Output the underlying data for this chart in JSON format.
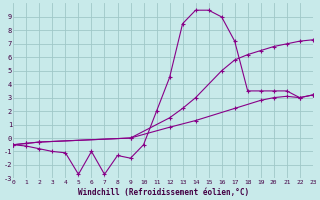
{
  "background_color": "#c8eaea",
  "grid_color": "#a0c8c8",
  "line_color": "#880088",
  "xlabel": "Windchill (Refroidissement éolien,°C)",
  "xlim": [
    0,
    23
  ],
  "ylim": [
    -3,
    10
  ],
  "xticks": [
    0,
    1,
    2,
    3,
    4,
    5,
    6,
    7,
    8,
    9,
    10,
    11,
    12,
    13,
    14,
    15,
    16,
    17,
    18,
    19,
    20,
    21,
    22,
    23
  ],
  "yticks": [
    -3,
    -2,
    -1,
    0,
    1,
    2,
    3,
    4,
    5,
    6,
    7,
    8,
    9
  ],
  "line1_x": [
    0,
    1,
    2,
    3,
    4,
    5,
    6,
    7,
    8,
    9,
    10,
    11,
    12,
    13,
    14,
    15,
    16,
    17,
    18,
    19,
    20,
    21,
    22,
    23
  ],
  "line1_y": [
    -0.5,
    -0.6,
    -0.8,
    -1.0,
    -1.1,
    -2.7,
    -1.0,
    -2.7,
    -1.3,
    -1.5,
    -0.5,
    2.0,
    4.5,
    8.5,
    9.5,
    9.5,
    9.0,
    7.2,
    3.5,
    3.5,
    3.5,
    3.5,
    3.0,
    3.2
  ],
  "line2_x": [
    0,
    1,
    2,
    9,
    12,
    13,
    14,
    16,
    17,
    18,
    19,
    20,
    21,
    22,
    23
  ],
  "line2_y": [
    -0.5,
    -0.4,
    -0.3,
    0.0,
    1.5,
    2.2,
    3.0,
    5.0,
    5.8,
    6.2,
    6.5,
    6.8,
    7.0,
    7.2,
    7.3
  ],
  "line3_x": [
    0,
    1,
    2,
    9,
    12,
    14,
    17,
    19,
    20,
    21,
    22,
    23
  ],
  "line3_y": [
    -0.5,
    -0.4,
    -0.3,
    0.0,
    0.8,
    1.3,
    2.2,
    2.8,
    3.0,
    3.1,
    3.0,
    3.2
  ]
}
